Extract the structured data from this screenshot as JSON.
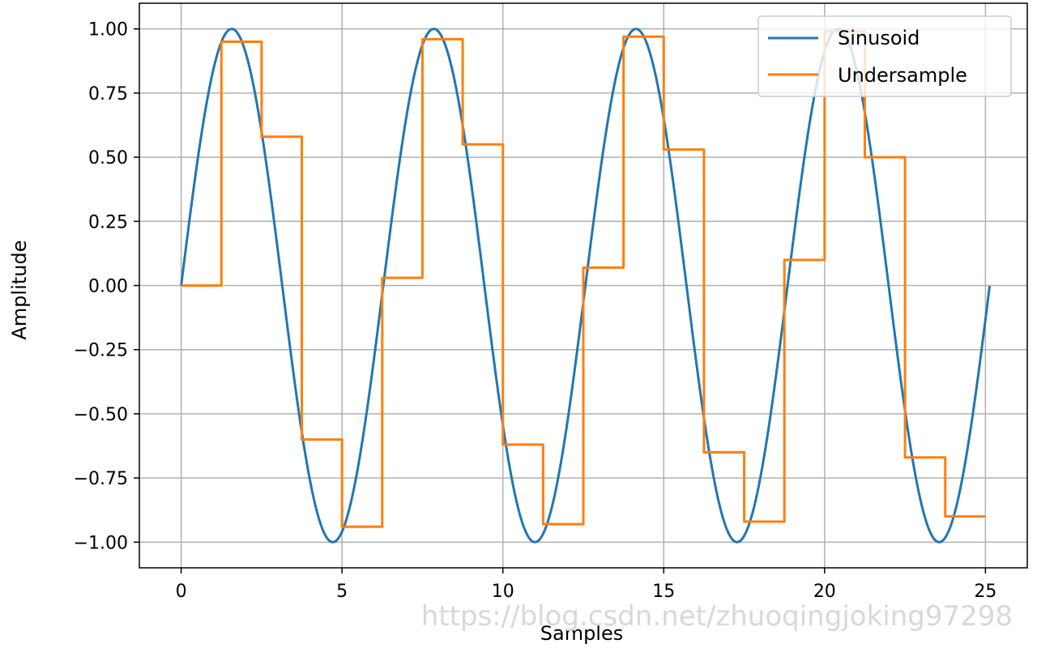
{
  "chart_data": {
    "type": "line",
    "title": "",
    "xlabel": "Samples",
    "ylabel": "Amplitude",
    "xlim": [
      -1.3,
      26.3
    ],
    "ylim": [
      -1.1,
      1.1
    ],
    "xticks": [
      0,
      5,
      10,
      15,
      20,
      25
    ],
    "xtick_labels": [
      "0",
      "5",
      "10",
      "15",
      "20",
      "25"
    ],
    "yticks": [
      1.0,
      0.75,
      0.5,
      0.25,
      0.0,
      -0.25,
      -0.5,
      -0.75,
      -1.0
    ],
    "ytick_labels": [
      "1.00",
      "0.75",
      "0.50",
      "0.25",
      "0.00",
      "−0.25",
      "−0.50",
      "−0.75",
      "−1.00"
    ],
    "grid": true,
    "legend_placement": "upper-right",
    "series": [
      {
        "name": "Sinusoid",
        "kind": "sine",
        "color": "#1f77b4",
        "x_start": 0,
        "x_end": 25.13,
        "period": 6.283,
        "amplitude": 1.0
      },
      {
        "name": "Undersample",
        "kind": "step",
        "color": "#ff7f0e",
        "x": [
          0,
          1.25,
          2.5,
          3.75,
          5.0,
          6.25,
          7.5,
          8.75,
          10.0,
          11.25,
          12.5,
          13.75,
          15.0,
          16.25,
          17.5,
          18.75,
          20.0,
          21.25,
          22.5,
          23.75,
          25.0
        ],
        "values": [
          0.0,
          0.95,
          0.58,
          -0.6,
          -0.94,
          0.03,
          0.96,
          0.55,
          -0.62,
          -0.93,
          0.07,
          0.97,
          0.53,
          -0.65,
          -0.92,
          0.1,
          0.99,
          0.5,
          -0.67,
          -0.9,
          -0.9
        ]
      }
    ]
  },
  "watermark": "https://blog.csdn.net/zhuoqingjoking97298"
}
